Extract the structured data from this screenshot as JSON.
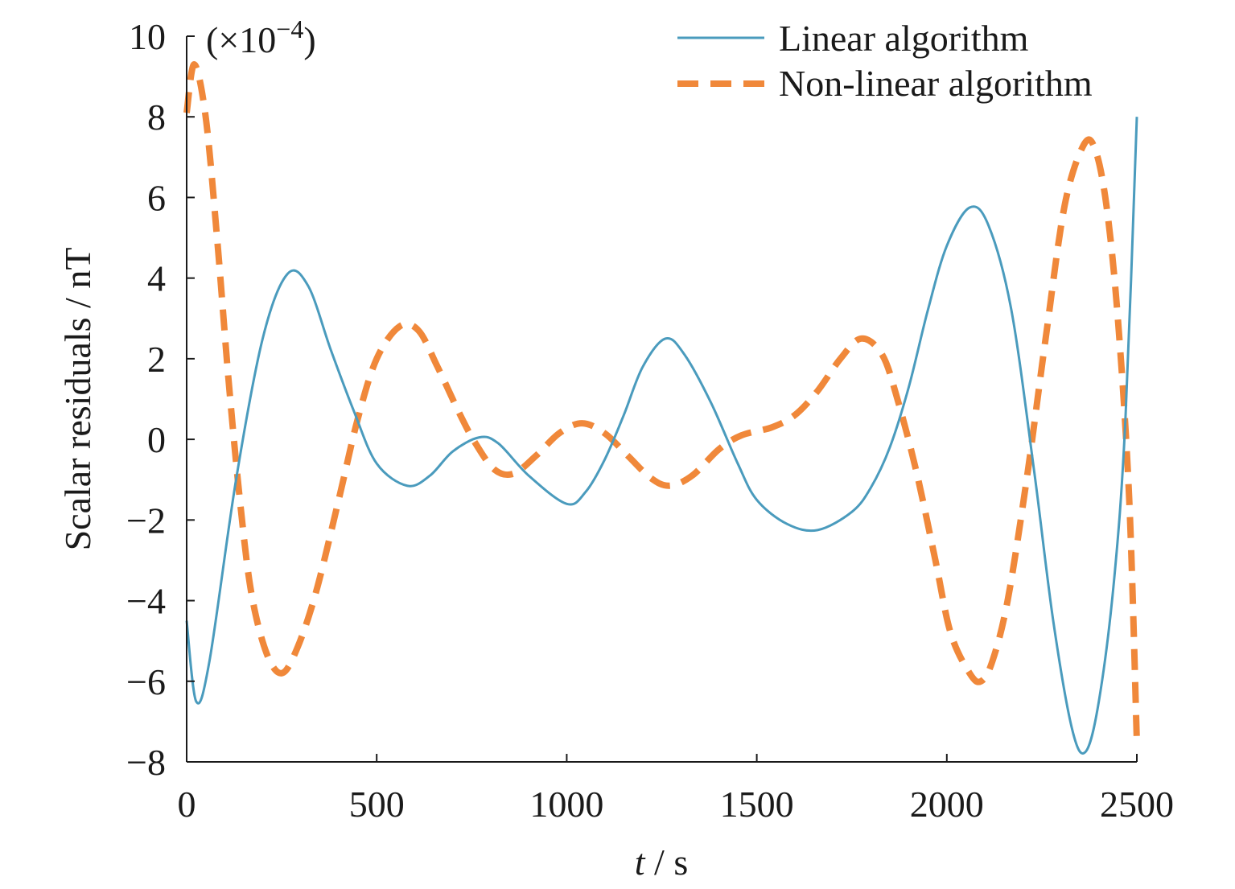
{
  "chart_data": {
    "type": "line",
    "title": "",
    "xlabel_var": "t",
    "xlabel_unit": " / s",
    "ylabel": "Scalar residuals / nT",
    "y_multiplier": {
      "open": "(×10",
      "exp": "−4",
      "close": ")"
    },
    "xlim": [
      0,
      2500
    ],
    "ylim": [
      -8,
      10
    ],
    "x_ticks": [
      0,
      500,
      1000,
      1500,
      2000,
      2500
    ],
    "x_tick_labels": [
      "0",
      "500",
      "1000",
      "1500",
      "2000",
      "2500"
    ],
    "y_ticks": [
      -8,
      -6,
      -4,
      -2,
      0,
      2,
      4,
      6,
      8,
      10
    ],
    "y_tick_labels": [
      "−8",
      "−6",
      "−4",
      "−2",
      "0",
      "2",
      "4",
      "6",
      "8",
      "10"
    ],
    "grid": false,
    "legend_position": "top-right",
    "series": [
      {
        "name": "Linear algorithm",
        "color": "#4a9bbd",
        "style": "solid",
        "points": [
          [
            0,
            -4.5
          ],
          [
            25,
            -6.5
          ],
          [
            60,
            -5.5
          ],
          [
            130,
            -1.0
          ],
          [
            200,
            2.5
          ],
          [
            265,
            4.1
          ],
          [
            320,
            3.8
          ],
          [
            380,
            2.2
          ],
          [
            440,
            0.7
          ],
          [
            500,
            -0.6
          ],
          [
            580,
            -1.15
          ],
          [
            640,
            -0.9
          ],
          [
            700,
            -0.3
          ],
          [
            770,
            0.05
          ],
          [
            820,
            -0.1
          ],
          [
            900,
            -0.9
          ],
          [
            1000,
            -1.6
          ],
          [
            1050,
            -1.3
          ],
          [
            1100,
            -0.5
          ],
          [
            1150,
            0.6
          ],
          [
            1200,
            1.8
          ],
          [
            1260,
            2.5
          ],
          [
            1310,
            2.1
          ],
          [
            1380,
            0.9
          ],
          [
            1450,
            -0.6
          ],
          [
            1500,
            -1.5
          ],
          [
            1580,
            -2.1
          ],
          [
            1660,
            -2.25
          ],
          [
            1750,
            -1.8
          ],
          [
            1800,
            -1.2
          ],
          [
            1850,
            -0.2
          ],
          [
            1900,
            1.3
          ],
          [
            1950,
            3.2
          ],
          [
            2000,
            4.8
          ],
          [
            2060,
            5.75
          ],
          [
            2110,
            5.3
          ],
          [
            2170,
            3.2
          ],
          [
            2230,
            -0.8
          ],
          [
            2280,
            -4.5
          ],
          [
            2330,
            -7.2
          ],
          [
            2365,
            -7.75
          ],
          [
            2400,
            -6.5
          ],
          [
            2440,
            -3.5
          ],
          [
            2470,
            0.5
          ],
          [
            2500,
            8.0
          ]
        ]
      },
      {
        "name": "Non-linear algorithm",
        "color": "#f0883a",
        "style": "dashed",
        "points": [
          [
            0,
            8.1
          ],
          [
            20,
            9.3
          ],
          [
            50,
            8.0
          ],
          [
            80,
            5.0
          ],
          [
            110,
            1.5
          ],
          [
            140,
            -1.5
          ],
          [
            170,
            -3.8
          ],
          [
            210,
            -5.3
          ],
          [
            250,
            -5.8
          ],
          [
            290,
            -5.2
          ],
          [
            340,
            -3.8
          ],
          [
            400,
            -1.5
          ],
          [
            450,
            0.5
          ],
          [
            500,
            2.0
          ],
          [
            560,
            2.8
          ],
          [
            610,
            2.7
          ],
          [
            660,
            1.8
          ],
          [
            720,
            0.6
          ],
          [
            760,
            -0.1
          ],
          [
            810,
            -0.75
          ],
          [
            860,
            -0.85
          ],
          [
            920,
            -0.4
          ],
          [
            980,
            0.15
          ],
          [
            1040,
            0.4
          ],
          [
            1100,
            0.15
          ],
          [
            1160,
            -0.4
          ],
          [
            1220,
            -0.95
          ],
          [
            1270,
            -1.15
          ],
          [
            1330,
            -0.9
          ],
          [
            1400,
            -0.25
          ],
          [
            1460,
            0.1
          ],
          [
            1540,
            0.3
          ],
          [
            1600,
            0.6
          ],
          [
            1660,
            1.2
          ],
          [
            1720,
            2.0
          ],
          [
            1775,
            2.5
          ],
          [
            1830,
            2.1
          ],
          [
            1870,
            1.0
          ],
          [
            1920,
            -0.8
          ],
          [
            1970,
            -3.0
          ],
          [
            2010,
            -4.8
          ],
          [
            2060,
            -5.8
          ],
          [
            2090,
            -6.0
          ],
          [
            2120,
            -5.5
          ],
          [
            2160,
            -4.0
          ],
          [
            2210,
            -1.0
          ],
          [
            2260,
            2.5
          ],
          [
            2310,
            5.8
          ],
          [
            2360,
            7.3
          ],
          [
            2390,
            7.2
          ],
          [
            2420,
            5.8
          ],
          [
            2450,
            3.0
          ],
          [
            2480,
            -1.5
          ],
          [
            2500,
            -7.5
          ]
        ]
      }
    ]
  }
}
